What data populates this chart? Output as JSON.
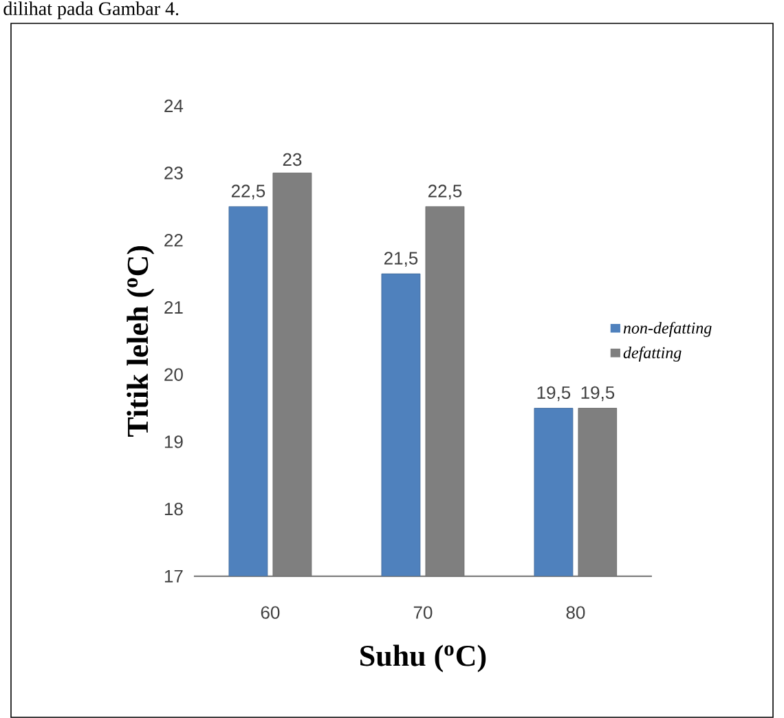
{
  "chart_data": {
    "type": "bar",
    "xlabel": "Suhu ($^{o}$C)",
    "ylabel": "Titik leleh ($^{o}$C)",
    "categories": [
      "60",
      "70",
      "80"
    ],
    "series": [
      {
        "name": "non-defatting",
        "color": "#4f81bd",
        "values": [
          22.5,
          21.5,
          19.5
        ],
        "value_labels": [
          "22,5",
          "21,5",
          "19,5"
        ]
      },
      {
        "name": "defatting",
        "color": "#7f7f7f",
        "values": [
          23,
          22.5,
          19.5
        ],
        "value_labels": [
          "23",
          "22,5",
          "19,5"
        ]
      }
    ],
    "ylim": [
      17,
      24
    ],
    "yticks": [
      17,
      18,
      19,
      20,
      21,
      22,
      23,
      24
    ],
    "grid": false,
    "legend": "right",
    "annotations": [
      "dilihat pada Gambar 4."
    ]
  }
}
